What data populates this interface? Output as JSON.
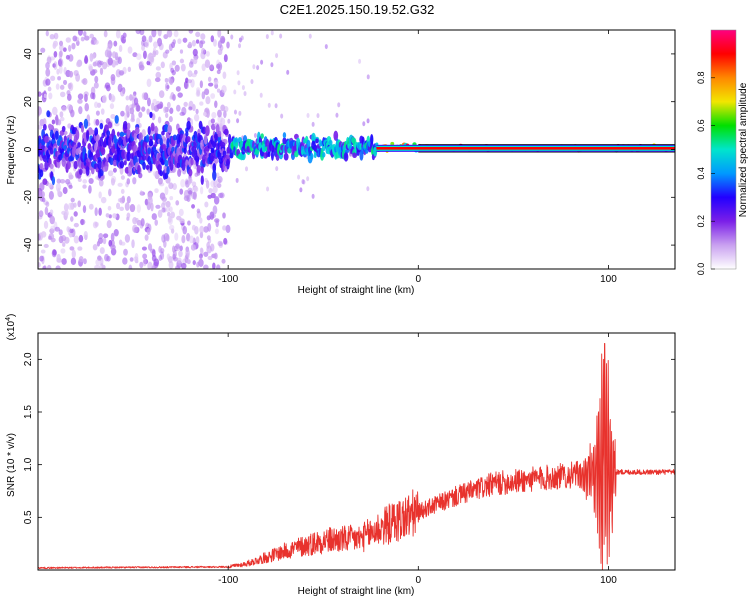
{
  "figure_title": "C2E1.2025.150.19.52.G32",
  "chart_data": [
    {
      "type": "heatmap",
      "xlabel": "Height of straight line (km)",
      "ylabel": "Frequency (Hz)",
      "xlim": [
        -200,
        135
      ],
      "ylim": [
        -50,
        50
      ],
      "x_ticks": [
        -100,
        0,
        100
      ],
      "y_ticks": [
        -40,
        -20,
        0,
        20,
        40
      ],
      "colorbar": {
        "label": "Normalized spectral amplitude",
        "range": [
          0,
          1
        ],
        "ticks": [
          0.0,
          0.2,
          0.4,
          0.6,
          0.8
        ],
        "colors": [
          "#ffffff",
          "#c9a0f0",
          "#7b1fe8",
          "#2200ff",
          "#0099ff",
          "#00e5cc",
          "#00e000",
          "#f2e600",
          "#ff8800",
          "#ff0000",
          "#ff0080"
        ]
      },
      "trace_segments": [
        {
          "x_range": [
            -200,
            -100
          ],
          "frequency_center": 0,
          "frequency_spread": 8,
          "amplitude": 0.15
        },
        {
          "x_range": [
            -100,
            -22
          ],
          "frequency_center": 1,
          "frequency_spread": 5,
          "amplitude": 0.3
        },
        {
          "x_range": [
            -22,
            0
          ],
          "frequency_center": 1,
          "frequency_spread": 2,
          "amplitude": 0.8
        },
        {
          "x_range": [
            0,
            135
          ],
          "frequency_center": 0.5,
          "frequency_spread": 1,
          "amplitude": 1.0
        }
      ]
    },
    {
      "type": "line",
      "xlabel": "Height of straight line (km)",
      "ylabel": "SNR (10 * v/v)",
      "y_multiplier": "(x10^4)",
      "xlim": [
        -200,
        135
      ],
      "ylim": [
        0,
        2.25
      ],
      "x_ticks": [
        -100,
        0,
        100
      ],
      "y_ticks": [
        0.5,
        1.0,
        1.5,
        2.0
      ],
      "color": "#e8322d",
      "envelope": [
        {
          "x": -200,
          "y": 0.02
        },
        {
          "x": -100,
          "y": 0.03
        },
        {
          "x": -90,
          "y": 0.06
        },
        {
          "x": -70,
          "y": 0.18
        },
        {
          "x": -50,
          "y": 0.28
        },
        {
          "x": -30,
          "y": 0.3
        },
        {
          "x": -20,
          "y": 0.4
        },
        {
          "x": 0,
          "y": 0.55
        },
        {
          "x": 20,
          "y": 0.7
        },
        {
          "x": 40,
          "y": 0.82
        },
        {
          "x": 60,
          "y": 0.86
        },
        {
          "x": 80,
          "y": 0.9
        },
        {
          "x": 100,
          "y": 0.93
        },
        {
          "x": 135,
          "y": 0.93
        }
      ],
      "peak": {
        "x": 98,
        "y": 2.15
      }
    }
  ]
}
